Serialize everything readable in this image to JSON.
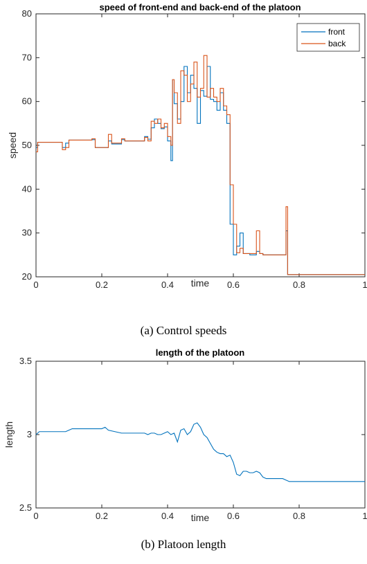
{
  "chart_data": [
    {
      "type": "line",
      "title": "speed of front-end and back-end of the platoon",
      "xlabel": "time",
      "ylabel": "speed",
      "xlim": [
        0,
        1
      ],
      "ylim": [
        20,
        80
      ],
      "xticks": [
        "0",
        "0.2",
        "0.4",
        "0.6",
        "0.8",
        "1"
      ],
      "yticks": [
        "20",
        "30",
        "40",
        "50",
        "60",
        "70",
        "80"
      ],
      "legend_position": "top-right",
      "caption": "(a)  Control speeds",
      "series": [
        {
          "name": "front",
          "color": "#0072BD",
          "step": true,
          "x": [
            0,
            0.005,
            0.07,
            0.08,
            0.09,
            0.1,
            0.17,
            0.18,
            0.22,
            0.23,
            0.26,
            0.27,
            0.33,
            0.34,
            0.35,
            0.36,
            0.37,
            0.38,
            0.39,
            0.4,
            0.41,
            0.415,
            0.42,
            0.43,
            0.44,
            0.45,
            0.46,
            0.47,
            0.48,
            0.49,
            0.5,
            0.51,
            0.52,
            0.53,
            0.54,
            0.55,
            0.56,
            0.57,
            0.58,
            0.59,
            0.6,
            0.61,
            0.62,
            0.63,
            0.64,
            0.65,
            0.66,
            0.67,
            0.68,
            0.69,
            0.7,
            0.75,
            0.76,
            0.765,
            1
          ],
          "y": [
            49.5,
            50.7,
            50.7,
            49.5,
            50.5,
            51.2,
            51.3,
            49.5,
            51.0,
            50.3,
            51.3,
            51.0,
            52.0,
            51.4,
            54.0,
            56.0,
            55.0,
            53.8,
            54.2,
            51.0,
            46.5,
            65.0,
            59.5,
            56.0,
            60.0,
            68.0,
            62.0,
            66.0,
            63.0,
            55.0,
            62.5,
            61.2,
            68.0,
            60.5,
            60.0,
            58.0,
            62.0,
            58.0,
            55.0,
            32.0,
            25.0,
            27.0,
            30.0,
            25.3,
            25.3,
            25.0,
            25.0,
            25.8,
            25.3,
            25.0,
            25.0,
            25.0,
            30.5,
            20.5,
            20.5
          ]
        },
        {
          "name": "back",
          "color": "#D95319",
          "step": true,
          "x": [
            0,
            0.005,
            0.07,
            0.08,
            0.09,
            0.1,
            0.17,
            0.18,
            0.22,
            0.23,
            0.26,
            0.27,
            0.33,
            0.34,
            0.35,
            0.36,
            0.37,
            0.38,
            0.39,
            0.4,
            0.41,
            0.415,
            0.42,
            0.43,
            0.44,
            0.45,
            0.46,
            0.47,
            0.48,
            0.49,
            0.5,
            0.51,
            0.52,
            0.53,
            0.54,
            0.55,
            0.56,
            0.57,
            0.58,
            0.59,
            0.6,
            0.61,
            0.62,
            0.63,
            0.64,
            0.65,
            0.66,
            0.67,
            0.68,
            0.69,
            0.7,
            0.75,
            0.76,
            0.765,
            1
          ],
          "y": [
            48.5,
            50.7,
            50.7,
            49.0,
            49.5,
            51.2,
            51.5,
            49.5,
            52.5,
            50.5,
            51.5,
            51.0,
            51.8,
            51.0,
            55.5,
            55.0,
            56.0,
            54.0,
            55.0,
            52.0,
            50.0,
            65.0,
            62.0,
            55.0,
            67.0,
            66.0,
            60.0,
            64.0,
            69.0,
            61.0,
            63.0,
            70.5,
            61.0,
            63.0,
            61.0,
            60.0,
            63.0,
            59.0,
            57.0,
            41.0,
            32.0,
            25.5,
            26.5,
            25.3,
            25.3,
            25.3,
            25.3,
            30.5,
            25.3,
            25.0,
            25.0,
            25.0,
            36.0,
            20.5,
            20.5
          ]
        }
      ]
    },
    {
      "type": "line",
      "title": "length of the platoon",
      "xlabel": "time",
      "ylabel": "length",
      "xlim": [
        0,
        1
      ],
      "ylim": [
        2.5,
        3.5
      ],
      "xticks": [
        "0",
        "0.2",
        "0.4",
        "0.6",
        "0.8",
        "1"
      ],
      "yticks": [
        "2.5",
        "3",
        "3.5"
      ],
      "caption": "(b)  Platoon length",
      "series": [
        {
          "color": "#0072BD",
          "x": [
            0,
            0.01,
            0.02,
            0.09,
            0.1,
            0.11,
            0.19,
            0.2,
            0.21,
            0.22,
            0.26,
            0.27,
            0.33,
            0.34,
            0.35,
            0.36,
            0.37,
            0.38,
            0.39,
            0.4,
            0.41,
            0.42,
            0.43,
            0.44,
            0.45,
            0.46,
            0.47,
            0.48,
            0.49,
            0.5,
            0.51,
            0.52,
            0.53,
            0.54,
            0.55,
            0.56,
            0.57,
            0.58,
            0.59,
            0.6,
            0.61,
            0.62,
            0.63,
            0.64,
            0.65,
            0.66,
            0.67,
            0.68,
            0.69,
            0.7,
            0.71,
            0.75,
            0.76,
            0.77,
            1
          ],
          "y": [
            3.0,
            3.02,
            3.02,
            3.02,
            3.03,
            3.04,
            3.04,
            3.04,
            3.05,
            3.03,
            3.01,
            3.01,
            3.01,
            3.0,
            3.01,
            3.01,
            3.0,
            3.0,
            3.01,
            3.02,
            3.0,
            3.01,
            2.95,
            3.03,
            3.04,
            3.0,
            3.02,
            3.07,
            3.08,
            3.05,
            3.0,
            2.98,
            2.94,
            2.9,
            2.88,
            2.87,
            2.87,
            2.85,
            2.86,
            2.81,
            2.73,
            2.72,
            2.75,
            2.75,
            2.74,
            2.74,
            2.75,
            2.74,
            2.71,
            2.7,
            2.7,
            2.7,
            2.69,
            2.68,
            2.68
          ]
        }
      ]
    }
  ]
}
